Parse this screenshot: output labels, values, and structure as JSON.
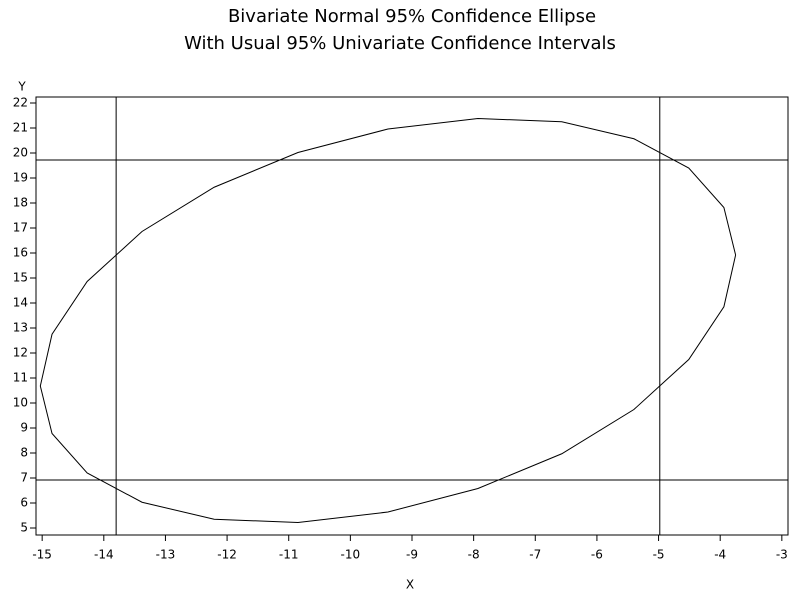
{
  "chart_data": {
    "type": "line",
    "title": "Bivariate Normal 95% Confidence Ellipse",
    "subtitle": "With Usual 95% Univariate Confidence Intervals",
    "x_label": "X",
    "y_label": "Y",
    "x": [
      -3.75,
      -3.94,
      -4.51,
      -5.4,
      -6.57,
      -7.93,
      -9.39,
      -10.85,
      -12.21,
      -13.38,
      -14.27,
      -14.84,
      -15.03,
      -14.84,
      -14.27,
      -13.38,
      -12.21,
      -10.85,
      -9.39,
      -7.93,
      -6.57,
      -5.4,
      -4.51,
      -3.94,
      -3.75
    ],
    "series": [
      {
        "color": "#000000",
        "values": [
          15.92,
          17.82,
          19.4,
          20.57,
          21.25,
          21.38,
          20.96,
          20.02,
          18.63,
          16.86,
          14.86,
          12.75,
          10.68,
          8.78,
          7.2,
          6.03,
          5.35,
          5.22,
          5.64,
          6.58,
          7.97,
          9.74,
          11.74,
          13.85,
          15.92
        ]
      }
    ],
    "vlines": [
      -13.8,
      -4.98
    ],
    "hlines": [
      6.92,
      19.72
    ],
    "xlim": [
      -15.1,
      -2.9
    ],
    "ylim": [
      4.72,
      22.24
    ],
    "xticks": [
      -15,
      -14,
      -13,
      -12,
      -11,
      -10,
      -9,
      -8,
      -7,
      -6,
      -5,
      -4,
      -3
    ],
    "yticks": [
      5,
      6,
      7,
      8,
      9,
      10,
      11,
      12,
      13,
      14,
      15,
      16,
      17,
      18,
      19,
      20,
      21,
      22
    ]
  }
}
